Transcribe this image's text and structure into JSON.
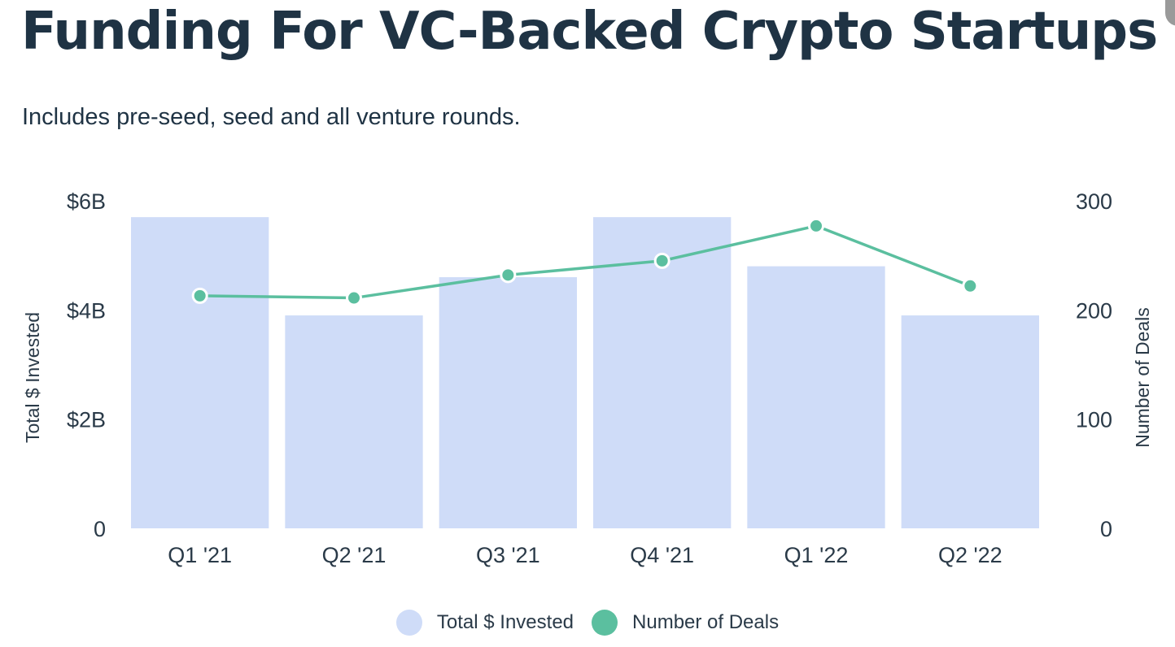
{
  "title": "Funding For VC-Backed Crypto Startups",
  "subtitle": "Includes pre-seed, seed and all venture rounds.",
  "chart_data": {
    "type": "bar",
    "categories": [
      "Q1 '21",
      "Q2 '21",
      "Q3 '21",
      "Q4 '21",
      "Q1 '22",
      "Q2 '22"
    ],
    "series": [
      {
        "name": "Total $ Invested",
        "type": "bar",
        "axis": "left",
        "color": "#cfdcf8",
        "values": [
          5.7,
          3.9,
          4.6,
          5.7,
          4.8,
          3.9
        ]
      },
      {
        "name": "Number of Deals",
        "type": "line",
        "axis": "right",
        "color": "#5bbf9f",
        "values": [
          213,
          211,
          232,
          245,
          277,
          222
        ]
      }
    ],
    "y_left": {
      "label": "Total $ Invested",
      "ylim": [
        0,
        6
      ],
      "ticks": [
        0,
        2,
        4,
        6
      ],
      "tick_labels": [
        "0",
        "$2B",
        "$4B",
        "$6B"
      ]
    },
    "y_right": {
      "label": "Number of Deals",
      "ylim": [
        0,
        300
      ],
      "ticks": [
        0,
        100,
        200,
        300
      ],
      "tick_labels": [
        "0",
        "100",
        "200",
        "300"
      ]
    },
    "grid": false,
    "legend_position": "bottom-center"
  }
}
